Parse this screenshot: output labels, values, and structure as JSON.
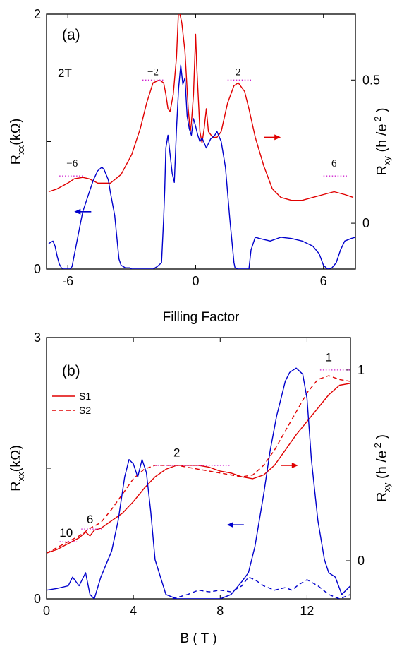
{
  "chart_data": [
    {
      "type": "line",
      "panel_label": "(a)",
      "annotation": "2T",
      "xlabel": "Filling Factor",
      "ylabel_left": {
        "main": "R",
        "sub": "xx",
        "rest": "(kΩ)"
      },
      "ylabel_right": {
        "main": "R",
        "sub": "xy",
        "rest": "(h /e",
        "sup": "2",
        "tail": " )"
      },
      "xlim": [
        -7,
        7.5
      ],
      "ylim_left": [
        0,
        2
      ],
      "ylim_right": [
        -0.16,
        0.73
      ],
      "x_ticks": [
        -6,
        0,
        6
      ],
      "x_tick_labels": [
        "-6",
        "0",
        "6"
      ],
      "left_ticks": [
        0,
        1,
        2
      ],
      "left_tick_labels": [
        "0",
        "",
        "2"
      ],
      "right_ticks": [
        0,
        0.5
      ],
      "right_tick_labels": [
        "0",
        "0.5"
      ],
      "plateau_labels": [
        {
          "text": "−6",
          "x": -5.8,
          "y": 0.18
        },
        {
          "text": "−2",
          "x": -2.0,
          "y": 0.5
        },
        {
          "text": "2",
          "x": 2.0,
          "y": 0.5
        },
        {
          "text": "6",
          "x": 6.5,
          "y": 0.18
        }
      ],
      "plateau_lines": [
        {
          "x1": -6.4,
          "x2": -5.2,
          "y": 0.165
        },
        {
          "x1": -2.5,
          "x2": -1.5,
          "y": 0.5
        },
        {
          "x1": 1.5,
          "x2": 2.6,
          "y": 0.5
        },
        {
          "x1": 6.0,
          "x2": 7.1,
          "y": 0.165
        }
      ],
      "series": [
        {
          "axis": "right",
          "color": "#e00000",
          "dash": "",
          "x": [
            -6.9,
            -6.5,
            -6.0,
            -5.7,
            -5.3,
            -5.0,
            -4.6,
            -4.0,
            -3.5,
            -3.0,
            -2.6,
            -2.3,
            -2.0,
            -1.7,
            -1.5,
            -1.4,
            -1.3,
            -1.2,
            -1.05,
            -0.9,
            -0.8,
            -0.65,
            -0.5,
            -0.35,
            -0.25,
            -0.2,
            -0.1,
            0.0,
            0.05,
            0.15,
            0.2,
            0.3,
            0.4,
            0.5,
            0.6,
            0.8,
            1.0,
            1.2,
            1.5,
            1.8,
            2.0,
            2.3,
            2.5,
            2.8,
            3.2,
            3.6,
            4.0,
            4.5,
            5.0,
            5.5,
            6.0,
            6.5,
            7.0,
            7.4
          ],
          "y": [
            0.11,
            0.12,
            0.14,
            0.155,
            0.16,
            0.155,
            0.14,
            0.14,
            0.17,
            0.24,
            0.33,
            0.42,
            0.49,
            0.5,
            0.49,
            0.45,
            0.4,
            0.39,
            0.45,
            0.58,
            0.75,
            0.7,
            0.6,
            0.4,
            0.32,
            0.35,
            0.45,
            0.66,
            0.55,
            0.4,
            0.32,
            0.28,
            0.33,
            0.4,
            0.32,
            0.3,
            0.3,
            0.32,
            0.42,
            0.48,
            0.49,
            0.46,
            0.4,
            0.3,
            0.2,
            0.12,
            0.09,
            0.08,
            0.08,
            0.09,
            0.1,
            0.11,
            0.1,
            0.09
          ]
        },
        {
          "axis": "left",
          "color": "#0000cc",
          "dash": "",
          "x": [
            -6.9,
            -6.7,
            -6.6,
            -6.5,
            -6.4,
            -6.3,
            -6.2,
            -6.0,
            -5.9,
            -5.8,
            -5.5,
            -5.3,
            -5.0,
            -4.8,
            -4.6,
            -4.4,
            -4.3,
            -4.1,
            -4.0,
            -3.8,
            -3.7,
            -3.6,
            -3.5,
            -3.4,
            -3.3,
            -3.1,
            -3.0,
            -2.5,
            -2.0,
            -1.8,
            -1.6,
            -1.5,
            -1.45,
            -1.4,
            -1.3,
            -1.2,
            -1.1,
            -1.0,
            -0.9,
            -0.8,
            -0.7,
            -0.6,
            -0.5,
            -0.4,
            -0.3,
            -0.2,
            -0.1,
            0.0,
            0.1,
            0.2,
            0.3,
            0.5,
            0.7,
            0.9,
            1.0,
            1.2,
            1.4,
            1.6,
            1.8,
            1.85,
            2.0,
            2.5,
            2.6,
            2.8,
            3.0,
            3.5,
            4.0,
            4.5,
            5.0,
            5.5,
            5.8,
            6.0,
            6.2,
            6.4,
            6.6,
            6.8,
            7.0,
            7.3,
            7.5
          ],
          "y": [
            0.2,
            0.22,
            0.18,
            0.1,
            0.04,
            0.01,
            0.0,
            0.0,
            0.0,
            0.02,
            0.28,
            0.45,
            0.6,
            0.7,
            0.77,
            0.8,
            0.78,
            0.7,
            0.6,
            0.42,
            0.25,
            0.08,
            0.03,
            0.02,
            0.01,
            0.01,
            0.0,
            0.0,
            0.0,
            0.02,
            0.05,
            0.4,
            0.62,
            0.95,
            1.05,
            0.9,
            0.75,
            0.68,
            1.1,
            1.42,
            1.6,
            1.45,
            1.5,
            1.2,
            1.1,
            1.05,
            1.18,
            1.12,
            1.05,
            1.0,
            1.03,
            0.95,
            1.02,
            1.05,
            1.08,
            1.0,
            0.8,
            0.4,
            0.05,
            0.01,
            0.0,
            0.0,
            0.15,
            0.25,
            0.24,
            0.22,
            0.25,
            0.24,
            0.22,
            0.18,
            0.12,
            0.03,
            0.0,
            0.01,
            0.05,
            0.15,
            0.22,
            0.24,
            0.25
          ]
        }
      ],
      "arrows": [
        {
          "direction": "right",
          "color": "#e00000",
          "x": 3.6,
          "y_right": 0.3
        },
        {
          "direction": "left",
          "color": "#0000cc",
          "x": -5.3,
          "y_left": 0.45
        }
      ]
    },
    {
      "type": "line",
      "panel_label": "(b)",
      "xlabel": "B ( T )",
      "ylabel_left": {
        "main": "R",
        "sub": "xx",
        "rest": "(kΩ)"
      },
      "ylabel_right": {
        "main": "R",
        "sub": "xy",
        "rest": "(h /e",
        "sup": "2",
        "tail": " )"
      },
      "xlim": [
        0,
        14
      ],
      "ylim_left": [
        0,
        3
      ],
      "ylim_right": [
        -0.2,
        1.17
      ],
      "x_ticks": [
        0,
        4,
        8,
        12
      ],
      "x_tick_labels": [
        "0",
        "4",
        "8",
        "12"
      ],
      "left_ticks": [
        0,
        1.5,
        3
      ],
      "left_tick_labels": [
        "0",
        "",
        "3"
      ],
      "right_ticks": [
        0,
        1
      ],
      "right_tick_labels": [
        "0",
        "1"
      ],
      "legend": {
        "position": "top-left",
        "entries": [
          {
            "label": "S1",
            "color": "#e00000",
            "dash": ""
          },
          {
            "label": "S2",
            "color": "#e00000",
            "dash": "6,4"
          }
        ]
      },
      "plateau_labels": [
        {
          "text": "10",
          "x": 0.9,
          "y": 0.1
        },
        {
          "text": "6",
          "x": 2.0,
          "y": 0.17
        },
        {
          "text": "2",
          "x": 6.0,
          "y": 0.52
        },
        {
          "text": "1",
          "x": 13.0,
          "y": 1.02
        }
      ],
      "plateau_lines": [
        {
          "x1": 0.6,
          "x2": 1.4,
          "y": 0.1
        },
        {
          "x1": 1.6,
          "x2": 2.6,
          "y": 0.166
        },
        {
          "x1": 5.0,
          "x2": 8.5,
          "y": 0.5
        },
        {
          "x1": 12.6,
          "x2": 14.0,
          "y": 1.0
        }
      ],
      "series": [
        {
          "name": "S1",
          "axis": "right",
          "color": "#e00000",
          "dash": "",
          "x": [
            0,
            0.5,
            1.0,
            1.5,
            1.8,
            2.0,
            2.2,
            2.5,
            3.0,
            3.5,
            4.0,
            4.5,
            5.0,
            5.5,
            6.0,
            6.5,
            7.0,
            7.5,
            8.0,
            8.5,
            9.0,
            9.5,
            10.0,
            10.5,
            11.0,
            11.5,
            12.0,
            12.5,
            13.0,
            13.5,
            14.0
          ],
          "y": [
            0.04,
            0.06,
            0.09,
            0.12,
            0.15,
            0.13,
            0.16,
            0.17,
            0.21,
            0.25,
            0.31,
            0.38,
            0.44,
            0.48,
            0.5,
            0.5,
            0.5,
            0.49,
            0.47,
            0.46,
            0.44,
            0.43,
            0.45,
            0.5,
            0.58,
            0.66,
            0.73,
            0.8,
            0.87,
            0.92,
            0.93
          ]
        },
        {
          "name": "S2",
          "axis": "right",
          "color": "#e00000",
          "dash": "6,4",
          "x": [
            0,
            0.5,
            1.0,
            1.5,
            2.0,
            2.5,
            3.0,
            3.5,
            4.0,
            4.5,
            5.0,
            5.5,
            6.0,
            6.5,
            7.0,
            7.5,
            8.0,
            8.5,
            9.0,
            9.5,
            10.0,
            10.5,
            11.0,
            11.5,
            12.0,
            12.5,
            13.0,
            13.5,
            14.0
          ],
          "y": [
            0.04,
            0.07,
            0.1,
            0.13,
            0.17,
            0.2,
            0.27,
            0.35,
            0.43,
            0.48,
            0.5,
            0.5,
            0.5,
            0.49,
            0.48,
            0.47,
            0.46,
            0.45,
            0.44,
            0.45,
            0.5,
            0.58,
            0.68,
            0.78,
            0.88,
            0.95,
            0.97,
            0.95,
            0.94
          ]
        },
        {
          "name": "S1",
          "axis": "left",
          "color": "#0000cc",
          "dash": "",
          "x": [
            0,
            0.5,
            1.0,
            1.2,
            1.5,
            1.8,
            2.0,
            2.2,
            2.5,
            3.0,
            3.3,
            3.6,
            3.8,
            4.0,
            4.2,
            4.4,
            4.6,
            4.8,
            5.0,
            5.5,
            6.0,
            7.0,
            8.0,
            8.5,
            9.0,
            9.3,
            9.6,
            10.0,
            10.3,
            10.6,
            10.8,
            11.0,
            11.2,
            11.5,
            11.8,
            12.0,
            12.2,
            12.5,
            12.8,
            13.0,
            13.3,
            13.6,
            14.0
          ],
          "y": [
            0.1,
            0.12,
            0.15,
            0.25,
            0.15,
            0.3,
            0.05,
            0.0,
            0.25,
            0.55,
            0.9,
            1.4,
            1.6,
            1.55,
            1.4,
            1.6,
            1.45,
            1.0,
            0.45,
            0.05,
            0.0,
            0.0,
            0.0,
            0.05,
            0.2,
            0.3,
            0.6,
            1.2,
            1.7,
            2.1,
            2.3,
            2.5,
            2.6,
            2.65,
            2.58,
            2.3,
            1.6,
            0.9,
            0.45,
            0.3,
            0.25,
            0.05,
            0.15
          ]
        },
        {
          "name": "S2",
          "axis": "left",
          "color": "#0000cc",
          "dash": "6,4",
          "x": [
            5.8,
            6.5,
            7.0,
            7.5,
            8.0,
            8.5,
            9.0,
            9.3,
            9.6,
            10.0,
            10.5,
            11.0,
            11.3,
            11.6,
            12.0,
            12.5,
            13.0,
            13.5,
            14.0
          ],
          "y": [
            0.0,
            0.05,
            0.1,
            0.08,
            0.1,
            0.08,
            0.15,
            0.25,
            0.22,
            0.15,
            0.1,
            0.13,
            0.1,
            0.16,
            0.22,
            0.15,
            0.05,
            0.0,
            0.05
          ]
        }
      ],
      "arrows": [
        {
          "direction": "right",
          "color": "#e00000",
          "x": 11.2,
          "y_right": 0.5
        },
        {
          "direction": "left",
          "color": "#0000cc",
          "x": 8.7,
          "y_left": 0.85
        }
      ]
    }
  ]
}
